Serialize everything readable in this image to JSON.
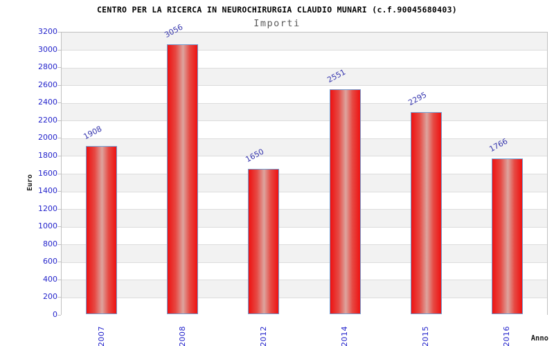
{
  "chart_data": {
    "type": "bar",
    "title": "CENTRO PER LA RICERCA IN NEUROCHIRURGIA CLAUDIO MUNARI (c.f.90045680403)",
    "subtitle": "Importi",
    "xlabel": "Anno",
    "ylabel": "Euro",
    "categories": [
      "2007",
      "2008",
      "2012",
      "2014",
      "2015",
      "2016"
    ],
    "values": [
      1908,
      3056,
      1650,
      2551,
      2295,
      1766
    ],
    "bar_value_labels": [
      "1908",
      "3056",
      "1650",
      "2551",
      "2295",
      "1766"
    ],
    "ylim": [
      0,
      3200
    ],
    "ytick_step": 200,
    "legend": "none",
    "grid": "horizontal gridlines with alternating gray/white bands every 200",
    "colors": {
      "bar_edge_red": "#ee1212",
      "bar_mid_red": "#e64a44",
      "bar_center_highlight": "#dda49e",
      "bar_border_blue": "#6fa0d6",
      "axis_tick_label_blue": "#2323cb",
      "value_label_blue": "#3434ad",
      "band_gray": "#f2f2f2",
      "band_white": "#ffffff",
      "gridline_gray": "#dcdcdc",
      "plot_border_gray": "#c0c0c0",
      "title_color": "#000000",
      "subtitle_gray": "#595959",
      "axis_title_color": "#1a1a1a"
    }
  }
}
